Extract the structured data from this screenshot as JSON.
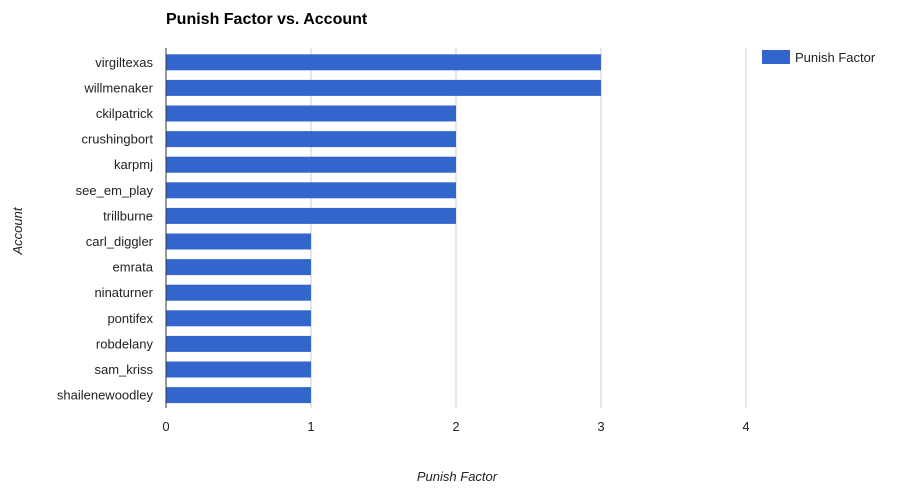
{
  "chart_data": {
    "type": "bar",
    "orientation": "horizontal",
    "title": "Punish Factor vs. Account",
    "xlabel": "Punish Factor",
    "ylabel": "Account",
    "categories": [
      "virgiltexas",
      "willmenaker",
      "ckilpatrick",
      "crushingbort",
      "karpmj",
      "see_em_play",
      "trillburne",
      "carl_diggler",
      "emrata",
      "ninaturner",
      "pontifex",
      "robdelany",
      "sam_kriss",
      "shailenewoodley"
    ],
    "series": [
      {
        "name": "Punish Factor",
        "color": "#3366cc",
        "values": [
          3,
          3,
          2,
          2,
          2,
          2,
          2,
          1,
          1,
          1,
          1,
          1,
          1,
          1
        ]
      }
    ],
    "xlim": [
      0,
      4
    ],
    "xticks": [
      "0",
      "1",
      "2",
      "3",
      "4"
    ],
    "grid": true,
    "legend_position": "right"
  }
}
